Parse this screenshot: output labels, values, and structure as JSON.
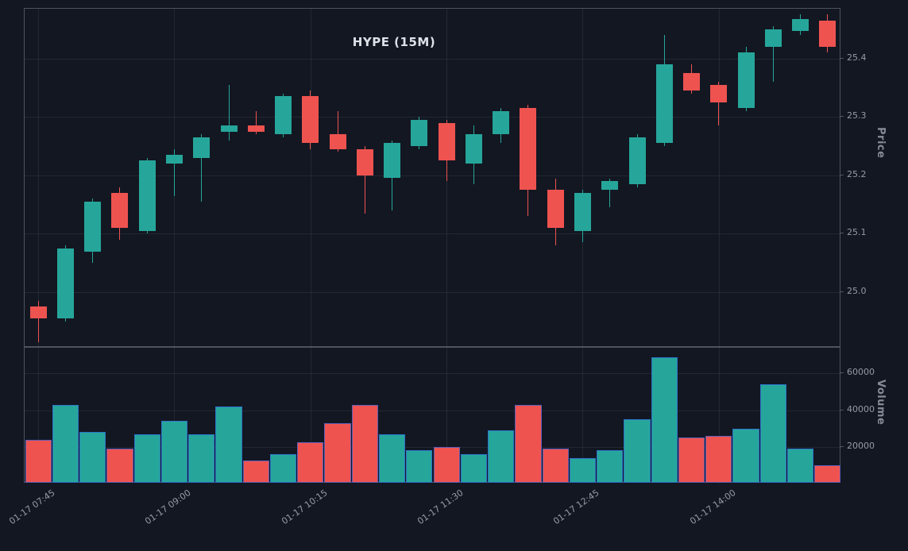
{
  "chart_data": {
    "type": "candlestick+volume",
    "title": "HYPE (15M)",
    "legend": "none",
    "grid": true,
    "colors": {
      "up": "#26a69a",
      "down": "#ef5350",
      "background": "#131722",
      "volume_edge": "#2f62d8"
    },
    "price_axis": {
      "label": "Price",
      "side": "right",
      "ylim": [
        24.905,
        25.485
      ],
      "ticks": [
        {
          "label": "25.0",
          "value": 25.0
        },
        {
          "label": "25.1",
          "value": 25.1
        },
        {
          "label": "25.2",
          "value": 25.2
        },
        {
          "label": "25.3",
          "value": 25.3
        },
        {
          "label": "25.4",
          "value": 25.4
        }
      ]
    },
    "volume_axis": {
      "label": "Volume",
      "side": "right",
      "ylim": [
        0,
        74000
      ],
      "ticks": [
        {
          "label": "20000",
          "value": 20000
        },
        {
          "label": "40000",
          "value": 40000
        },
        {
          "label": "60000",
          "value": 60000
        }
      ]
    },
    "x_axis": {
      "ticks": [
        {
          "label": "01-17 07:45",
          "index": 0
        },
        {
          "label": "01-17 09:00",
          "index": 5
        },
        {
          "label": "01-17 10:15",
          "index": 10
        },
        {
          "label": "01-17 11:30",
          "index": 15
        },
        {
          "label": "01-17 12:45",
          "index": 20
        },
        {
          "label": "01-17 14:00",
          "index": 25
        }
      ]
    },
    "candles": [
      {
        "o": 24.975,
        "h": 24.985,
        "l": 24.915,
        "c": 24.955,
        "v": 24000
      },
      {
        "o": 24.955,
        "h": 25.08,
        "l": 24.95,
        "c": 25.075,
        "v": 43000
      },
      {
        "o": 25.07,
        "h": 25.16,
        "l": 25.05,
        "c": 25.155,
        "v": 28000
      },
      {
        "o": 25.17,
        "h": 25.18,
        "l": 25.09,
        "c": 25.11,
        "v": 19000
      },
      {
        "o": 25.105,
        "h": 25.23,
        "l": 25.1,
        "c": 25.225,
        "v": 27000
      },
      {
        "o": 25.22,
        "h": 25.245,
        "l": 25.165,
        "c": 25.235,
        "v": 34000
      },
      {
        "o": 25.23,
        "h": 25.27,
        "l": 25.155,
        "c": 25.265,
        "v": 27000
      },
      {
        "o": 25.275,
        "h": 25.355,
        "l": 25.26,
        "c": 25.285,
        "v": 42000
      },
      {
        "o": 25.285,
        "h": 25.31,
        "l": 25.27,
        "c": 25.275,
        "v": 12500
      },
      {
        "o": 25.27,
        "h": 25.34,
        "l": 25.265,
        "c": 25.335,
        "v": 16000
      },
      {
        "o": 25.335,
        "h": 25.345,
        "l": 25.245,
        "c": 25.255,
        "v": 22500
      },
      {
        "o": 25.27,
        "h": 25.31,
        "l": 25.24,
        "c": 25.245,
        "v": 33000
      },
      {
        "o": 25.245,
        "h": 25.25,
        "l": 25.135,
        "c": 25.2,
        "v": 43000
      },
      {
        "o": 25.195,
        "h": 25.26,
        "l": 25.14,
        "c": 25.255,
        "v": 27000
      },
      {
        "o": 25.25,
        "h": 25.3,
        "l": 25.245,
        "c": 25.295,
        "v": 18000
      },
      {
        "o": 25.29,
        "h": 25.295,
        "l": 25.19,
        "c": 25.225,
        "v": 20000
      },
      {
        "o": 25.22,
        "h": 25.285,
        "l": 25.185,
        "c": 25.27,
        "v": 16000
      },
      {
        "o": 25.27,
        "h": 25.315,
        "l": 25.255,
        "c": 25.31,
        "v": 29000
      },
      {
        "o": 25.315,
        "h": 25.32,
        "l": 25.13,
        "c": 25.175,
        "v": 43000
      },
      {
        "o": 25.175,
        "h": 25.195,
        "l": 25.08,
        "c": 25.11,
        "v": 19000
      },
      {
        "o": 25.105,
        "h": 25.175,
        "l": 25.085,
        "c": 25.17,
        "v": 14000
      },
      {
        "o": 25.175,
        "h": 25.195,
        "l": 25.145,
        "c": 25.19,
        "v": 18000
      },
      {
        "o": 25.185,
        "h": 25.27,
        "l": 25.18,
        "c": 25.265,
        "v": 35000
      },
      {
        "o": 25.255,
        "h": 25.44,
        "l": 25.25,
        "c": 25.39,
        "v": 69000
      },
      {
        "o": 25.375,
        "h": 25.39,
        "l": 25.34,
        "c": 25.345,
        "v": 25000
      },
      {
        "o": 25.355,
        "h": 25.36,
        "l": 25.285,
        "c": 25.325,
        "v": 26000
      },
      {
        "o": 25.315,
        "h": 25.42,
        "l": 25.31,
        "c": 25.41,
        "v": 30000
      },
      {
        "o": 25.42,
        "h": 25.455,
        "l": 25.36,
        "c": 25.45,
        "v": 54000
      },
      {
        "o": 25.447,
        "h": 25.475,
        "l": 25.44,
        "c": 25.468,
        "v": 19000
      },
      {
        "o": 25.465,
        "h": 25.475,
        "l": 25.41,
        "c": 25.42,
        "v": 10000
      }
    ]
  }
}
